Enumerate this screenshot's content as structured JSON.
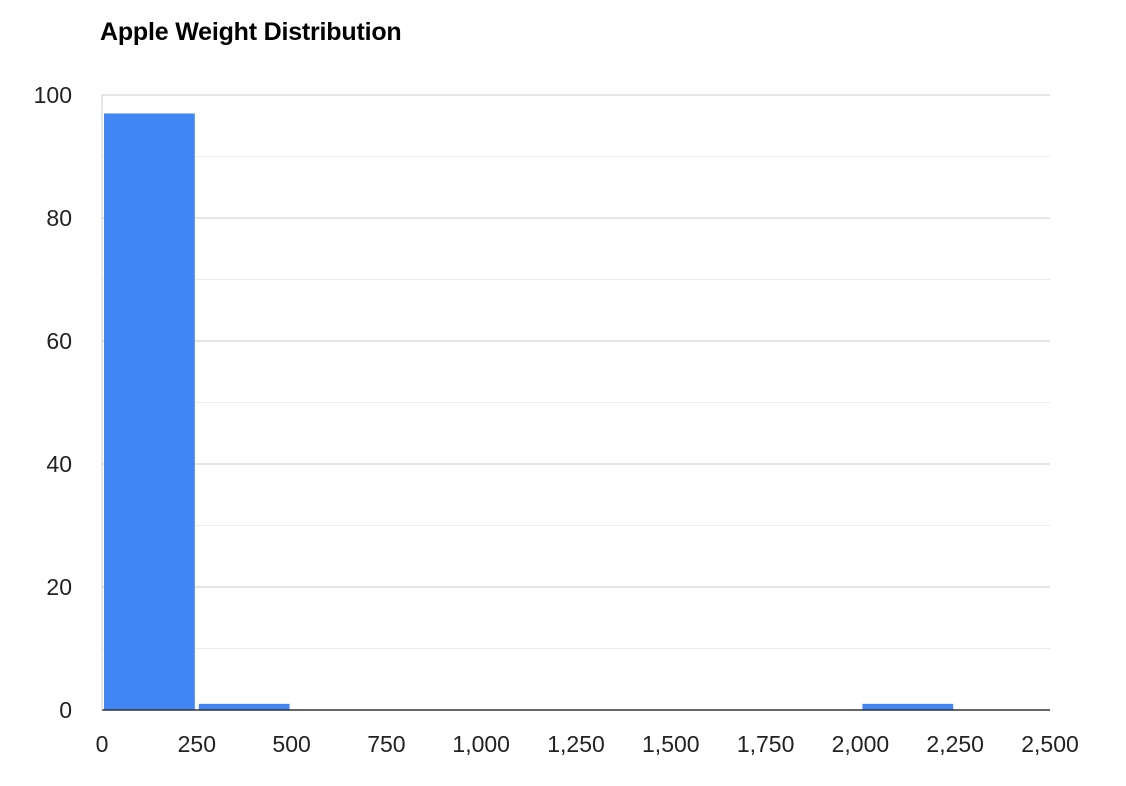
{
  "chart_data": {
    "type": "bar",
    "title": "Apple Weight Distribution",
    "xlabel": "",
    "ylabel": "",
    "bins": [
      {
        "start": 0,
        "end": 250,
        "value": 97
      },
      {
        "start": 250,
        "end": 500,
        "value": 1
      },
      {
        "start": 2000,
        "end": 2250,
        "value": 1
      }
    ],
    "xlim": [
      0,
      2500
    ],
    "ylim": [
      0,
      100
    ],
    "x_ticks": [
      "0",
      "250",
      "500",
      "750",
      "1,000",
      "1,250",
      "1,500",
      "1,750",
      "2,000",
      "2,250",
      "2,500"
    ],
    "y_ticks": [
      "0",
      "20",
      "40",
      "60",
      "80",
      "100"
    ],
    "y_major_step": 20,
    "y_minor_step": 10,
    "grid": true,
    "legend": "none",
    "bar_color": "#4285f4",
    "grid_color": "#cccccc",
    "minor_grid_color": "#ececec",
    "axis_color": "#333333"
  }
}
